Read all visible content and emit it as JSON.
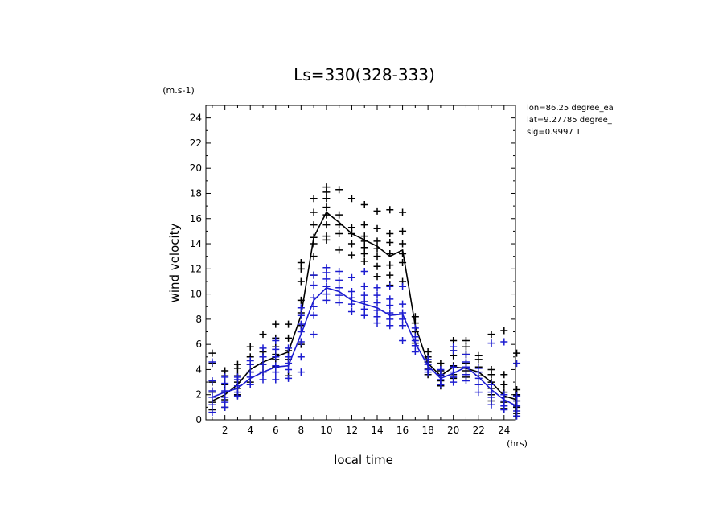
{
  "chart_data": {
    "type": "line",
    "title": "Ls=330(328-333)",
    "xlabel": "local time",
    "ylabel": "wind velocity",
    "y_unit": "(m.s-1)",
    "x_unit": "(hrs)",
    "xlim": [
      0.5,
      24.9
    ],
    "ylim": [
      0,
      25
    ],
    "x_ticks": [
      "2",
      "4",
      "6",
      "8",
      "10",
      "12",
      "14",
      "16",
      "18",
      "20",
      "22",
      "24"
    ],
    "y_ticks": [
      "0",
      "2",
      "4",
      "6",
      "8",
      "10",
      "12",
      "14",
      "16",
      "18",
      "20",
      "22",
      "24"
    ],
    "info": [
      "lon=86.25 degree_ea",
      "lat=9.27785 degree_",
      "sig=0.9997 1"
    ],
    "grid": false,
    "x": [
      1,
      2,
      3,
      4,
      5,
      6,
      7,
      8,
      9,
      10,
      11,
      12,
      13,
      14,
      15,
      16,
      17,
      18,
      19,
      20,
      21,
      22,
      23,
      24,
      25
    ],
    "series": [
      {
        "color": "#000000",
        "mean": [
          1.5,
          2.0,
          2.8,
          4.0,
          4.6,
          5.0,
          5.4,
          8.3,
          14.5,
          16.5,
          15.7,
          14.8,
          14.3,
          13.8,
          13.0,
          13.5,
          7.5,
          4.5,
          3.5,
          4.2,
          4.1,
          3.8,
          3.0,
          1.9,
          1.6
        ],
        "points": [
          [
            0.8,
            1.4,
            2.2,
            3.0,
            4.5,
            5.3
          ],
          [
            1.0,
            1.6,
            2.2,
            2.8,
            3.5,
            3.9
          ],
          [
            2.0,
            2.5,
            3.0,
            3.5,
            4.1,
            4.4
          ],
          [
            3.0,
            3.8,
            4.4,
            5.0,
            5.8
          ],
          [
            3.8,
            4.4,
            5.0,
            5.4,
            6.8
          ],
          [
            4.2,
            4.8,
            5.2,
            5.8,
            6.5,
            7.6
          ],
          [
            3.5,
            4.8,
            5.5,
            6.5,
            7.6
          ],
          [
            6.0,
            7.5,
            8.5,
            9.5,
            11.0,
            12.0,
            12.5
          ],
          [
            11.5,
            13.0,
            14.0,
            14.5,
            15.5,
            16.5,
            17.6
          ],
          [
            14.3,
            14.6,
            15.5,
            16.3,
            16.9,
            17.6,
            18.1,
            18.5
          ],
          [
            13.5,
            14.8,
            15.5,
            16.3,
            18.3
          ],
          [
            13.1,
            14.0,
            14.8,
            15.3,
            17.6
          ],
          [
            12.6,
            13.2,
            13.7,
            14.2,
            14.6,
            15.5,
            17.1
          ],
          [
            11.4,
            12.2,
            13.0,
            13.6,
            14.2,
            15.2,
            16.6
          ],
          [
            10.7,
            11.5,
            12.3,
            13.2,
            14.1,
            14.8,
            16.7
          ],
          [
            11.0,
            12.5,
            13.2,
            14.0,
            15.0,
            16.5
          ],
          [
            6.1,
            7.0,
            7.7,
            8.2
          ],
          [
            3.6,
            4.1,
            4.6,
            5.0,
            5.4
          ],
          [
            2.7,
            3.1,
            3.5,
            3.9,
            4.5
          ],
          [
            3.3,
            3.6,
            4.3,
            5.1,
            5.5,
            6.3
          ],
          [
            3.4,
            3.9,
            4.5,
            5.2,
            5.8,
            6.3
          ],
          [
            2.8,
            3.5,
            4.2,
            4.8,
            5.1
          ],
          [
            1.5,
            2.0,
            2.5,
            3.0,
            3.6,
            4.0,
            6.8
          ],
          [
            0.9,
            1.4,
            1.8,
            2.2,
            2.8,
            3.6,
            7.1
          ],
          [
            0.5,
            1.0,
            1.5,
            2.0,
            2.4,
            5.3
          ]
        ]
      },
      {
        "color": "#1c1cd0",
        "mean": [
          1.8,
          2.2,
          2.5,
          3.3,
          3.8,
          4.2,
          4.3,
          6.8,
          9.5,
          10.5,
          10.2,
          9.5,
          9.2,
          8.9,
          8.3,
          8.4,
          6.1,
          4.3,
          3.3,
          3.7,
          4.2,
          3.4,
          2.4,
          1.6,
          1.1
        ],
        "points": [
          [
            0.6,
            1.2,
            1.8,
            2.3,
            3.1,
            4.6
          ],
          [
            1.0,
            1.4,
            1.8,
            2.3,
            2.9,
            3.4
          ],
          [
            1.9,
            2.2,
            2.7,
            3.2,
            3.4
          ],
          [
            2.8,
            3.4,
            3.8,
            4.4,
            4.7
          ],
          [
            3.2,
            3.8,
            4.4,
            5.0,
            5.7
          ],
          [
            3.2,
            3.8,
            4.3,
            5.0,
            5.6,
            6.3
          ],
          [
            3.3,
            4.0,
            4.5,
            5.0,
            5.7
          ],
          [
            3.8,
            5.0,
            6.2,
            7.0,
            7.6,
            8.3,
            8.9
          ],
          [
            6.8,
            8.3,
            9.0,
            9.7,
            10.7,
            11.5
          ],
          [
            9.5,
            10.0,
            10.6,
            11.2,
            11.7,
            12.1
          ],
          [
            9.3,
            9.9,
            10.5,
            11.1,
            11.8
          ],
          [
            8.6,
            9.2,
            9.7,
            10.2,
            11.3
          ],
          [
            8.3,
            8.8,
            9.4,
            9.9,
            10.6,
            11.8
          ],
          [
            7.7,
            8.2,
            8.7,
            9.3,
            9.9,
            10.5
          ],
          [
            7.5,
            8.0,
            8.5,
            9.1,
            9.6,
            10.6
          ],
          [
            6.3,
            7.5,
            8.0,
            8.5,
            9.2,
            10.6
          ],
          [
            5.4,
            5.9,
            6.3,
            6.6,
            7.3
          ],
          [
            3.8,
            4.0,
            4.4,
            4.8
          ],
          [
            2.8,
            3.2,
            3.6,
            4.0
          ],
          [
            3.0,
            3.4,
            3.8,
            4.2,
            5.5,
            5.8
          ],
          [
            3.1,
            3.6,
            4.2,
            4.6,
            5.2
          ],
          [
            2.2,
            2.8,
            3.3,
            3.8,
            4.1
          ],
          [
            1.2,
            1.8,
            2.2,
            2.8,
            6.1
          ],
          [
            0.8,
            1.1,
            1.5,
            2.0,
            6.2
          ],
          [
            0.3,
            0.7,
            1.1,
            1.5,
            1.9,
            4.5
          ]
        ]
      }
    ]
  }
}
